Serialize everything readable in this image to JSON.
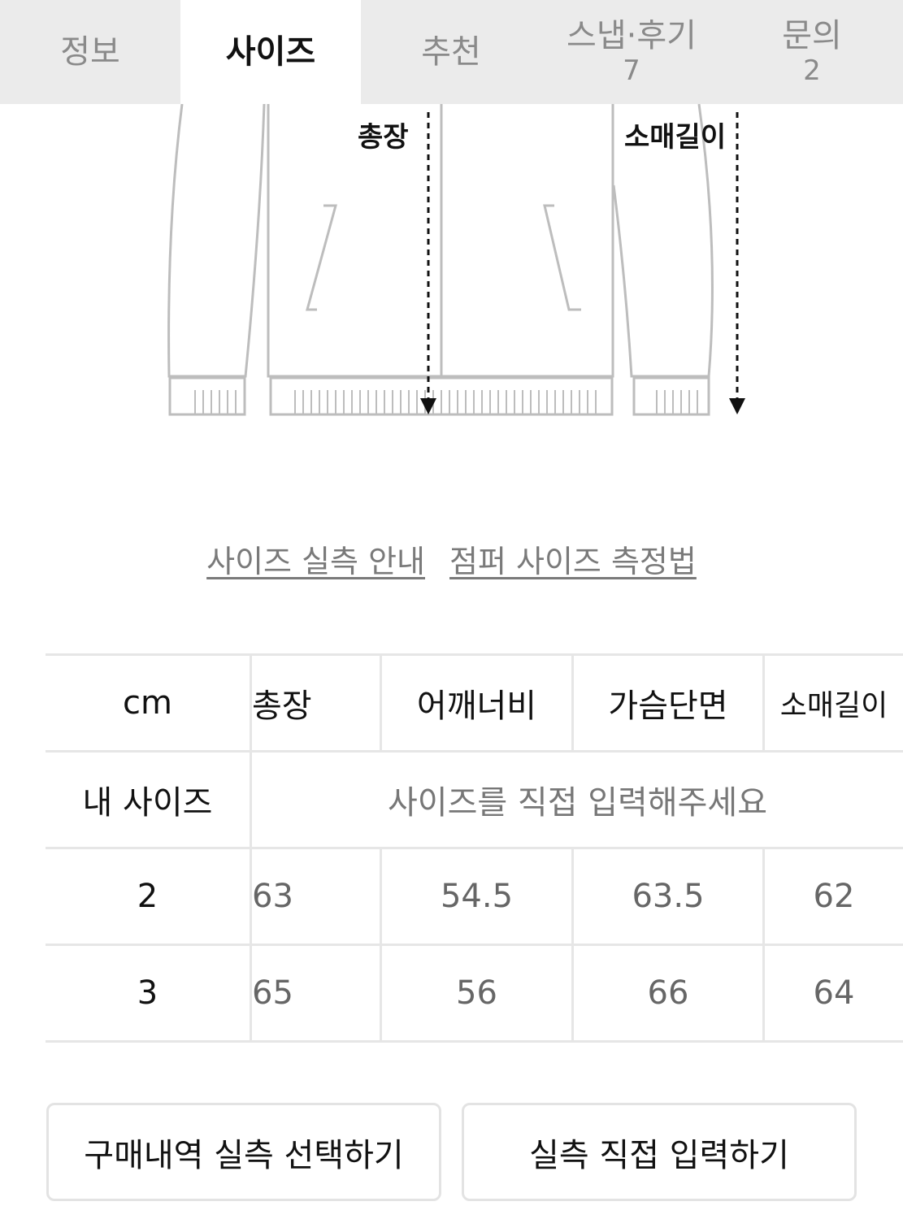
{
  "tabs": [
    {
      "label": "정보",
      "active": false
    },
    {
      "label": "사이즈",
      "active": true
    },
    {
      "label": "추천",
      "active": false
    },
    {
      "label": "스냅·후기",
      "count": "7",
      "active": false
    },
    {
      "label": "문의",
      "count": "2",
      "active": false
    }
  ],
  "diagram": {
    "label_length": "총장",
    "label_sleeve": "소매길이"
  },
  "links": {
    "size_guide": "사이즈 실측 안내",
    "measure_method": "점퍼 사이즈 측정법"
  },
  "table": {
    "unit": "cm",
    "headers": [
      "총장",
      "어깨너비",
      "가슴단면",
      "소매길이"
    ],
    "my_size_label": "내 사이즈",
    "my_size_placeholder": "사이즈를 직접 입력해주세요",
    "rows": [
      {
        "size": "2",
        "values": [
          "63",
          "54.5",
          "63.5",
          "62"
        ]
      },
      {
        "size": "3",
        "values": [
          "65",
          "56",
          "66",
          "64"
        ]
      }
    ]
  },
  "buttons": {
    "purchase_history": "구매내역 실측 선택하기",
    "manual_input": "실측 직접 입력하기"
  }
}
